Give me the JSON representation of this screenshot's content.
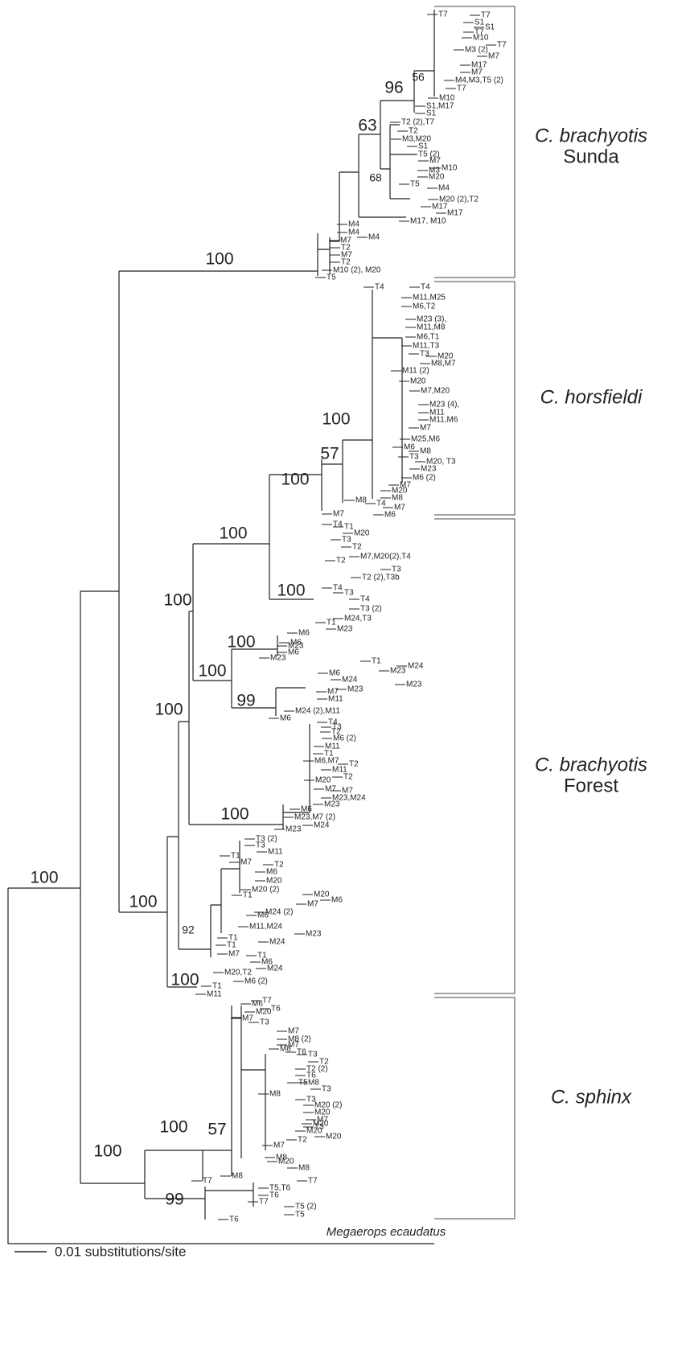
{
  "clades": [
    {
      "name": "C. brachyotis",
      "sub": "Sunda"
    },
    {
      "name": "C. horsfieldi"
    },
    {
      "name": "C. brachyotis",
      "sub": "Forest"
    },
    {
      "name": "C. sphinx"
    }
  ],
  "bootstrap": [
    100,
    100,
    96,
    63,
    56,
    68,
    100,
    57,
    100,
    100,
    100,
    100,
    100,
    100,
    99,
    100,
    100,
    100,
    92,
    100,
    100,
    57,
    100,
    99
  ],
  "tips": [
    "T7",
    "T7",
    "S1",
    "S1",
    "T7",
    "M10",
    "T7",
    "M3 (2)",
    "M7",
    "M17",
    "M7",
    "M4,M3,T5 (2)",
    "T7",
    "M10",
    "S1,M17",
    "S1",
    "T2 (2),T7",
    "T2",
    "M3,M20",
    "S1",
    "T5 (2)",
    "M7",
    "M10",
    "M3",
    "M20",
    "T5",
    "M4",
    "M20 (2),T2",
    "M17",
    "M17",
    "M17, M10",
    "M4",
    "M4",
    "M4",
    "M7",
    "T2",
    "M7",
    "T2",
    "M10 (2), M20",
    "T5",
    "T4",
    "T4",
    "M11,M25",
    "M6,T2",
    "M23 (3),",
    "M11,M8",
    "M6,T1",
    "M11,T3",
    "T3",
    "M20",
    "M8,M7",
    "M11 (2)",
    "M20",
    "M7,M20",
    "M23 (4),",
    "M11",
    "M11,M6",
    "M7",
    "M25,M6",
    "M6",
    "M8",
    "T3",
    "M20, T3",
    "M23",
    "M6 (2)",
    "M7",
    "M20",
    "M8",
    "M8",
    "T4",
    "M7",
    "M7",
    "M6",
    "T4",
    "T1",
    "M20",
    "T3",
    "T2",
    "M7,M20(2),T4",
    "T2",
    "T3",
    "T2 (2),T3b",
    "T4",
    "T3",
    "T4",
    "T3 (2)",
    "M24,T3",
    "T1",
    "M23",
    "M6",
    "M6",
    "M23",
    "M6",
    "M23",
    "T1",
    "M23",
    "M24",
    "M6",
    "M24",
    "M23",
    "M23",
    "M7",
    "M11",
    "M24 (2),M11",
    "M6",
    "T4",
    "T3",
    "T2",
    "M6 (2)",
    "M11",
    "T1",
    "M6,M7",
    "T2",
    "M11",
    "T2",
    "M20",
    "M7",
    "M7",
    "M23,M24",
    "M23",
    "M6",
    "M23,M7 (2)",
    "M24",
    "M23",
    "T3 (2)",
    "T3",
    "M11",
    "T1",
    "M7",
    "T2",
    "M6",
    "M20",
    "M20 (2)",
    "T1",
    "M20",
    "M6",
    "M7",
    "M24 (2)",
    "M6",
    "M11,M24",
    "M23",
    "T1",
    "M24",
    "T1",
    "M7",
    "T1",
    "M6",
    "M24",
    "M20,T2",
    "M6 (2)",
    "T1",
    "M11",
    "T7",
    "M6",
    "T6",
    "M20",
    "M7",
    "T3",
    "M7",
    "M8 (2)",
    "M7",
    "M8",
    "T6",
    "T3",
    "T2",
    "T2 (2)",
    "T6",
    "T5",
    "M8",
    "T3",
    "M8",
    "T3",
    "M20 (2)",
    "M20",
    "M7",
    "M20",
    "T3",
    "M20",
    "M20",
    "T2",
    "M7",
    "M8",
    "M20",
    "M8",
    "T7",
    "M8",
    "T7",
    "T5,T6",
    "T6",
    "T7",
    "T5 (2)",
    "T5",
    "T6"
  ],
  "outgroup": "Megaerops ecaudatus",
  "scale": "0.01 substitutions/site"
}
